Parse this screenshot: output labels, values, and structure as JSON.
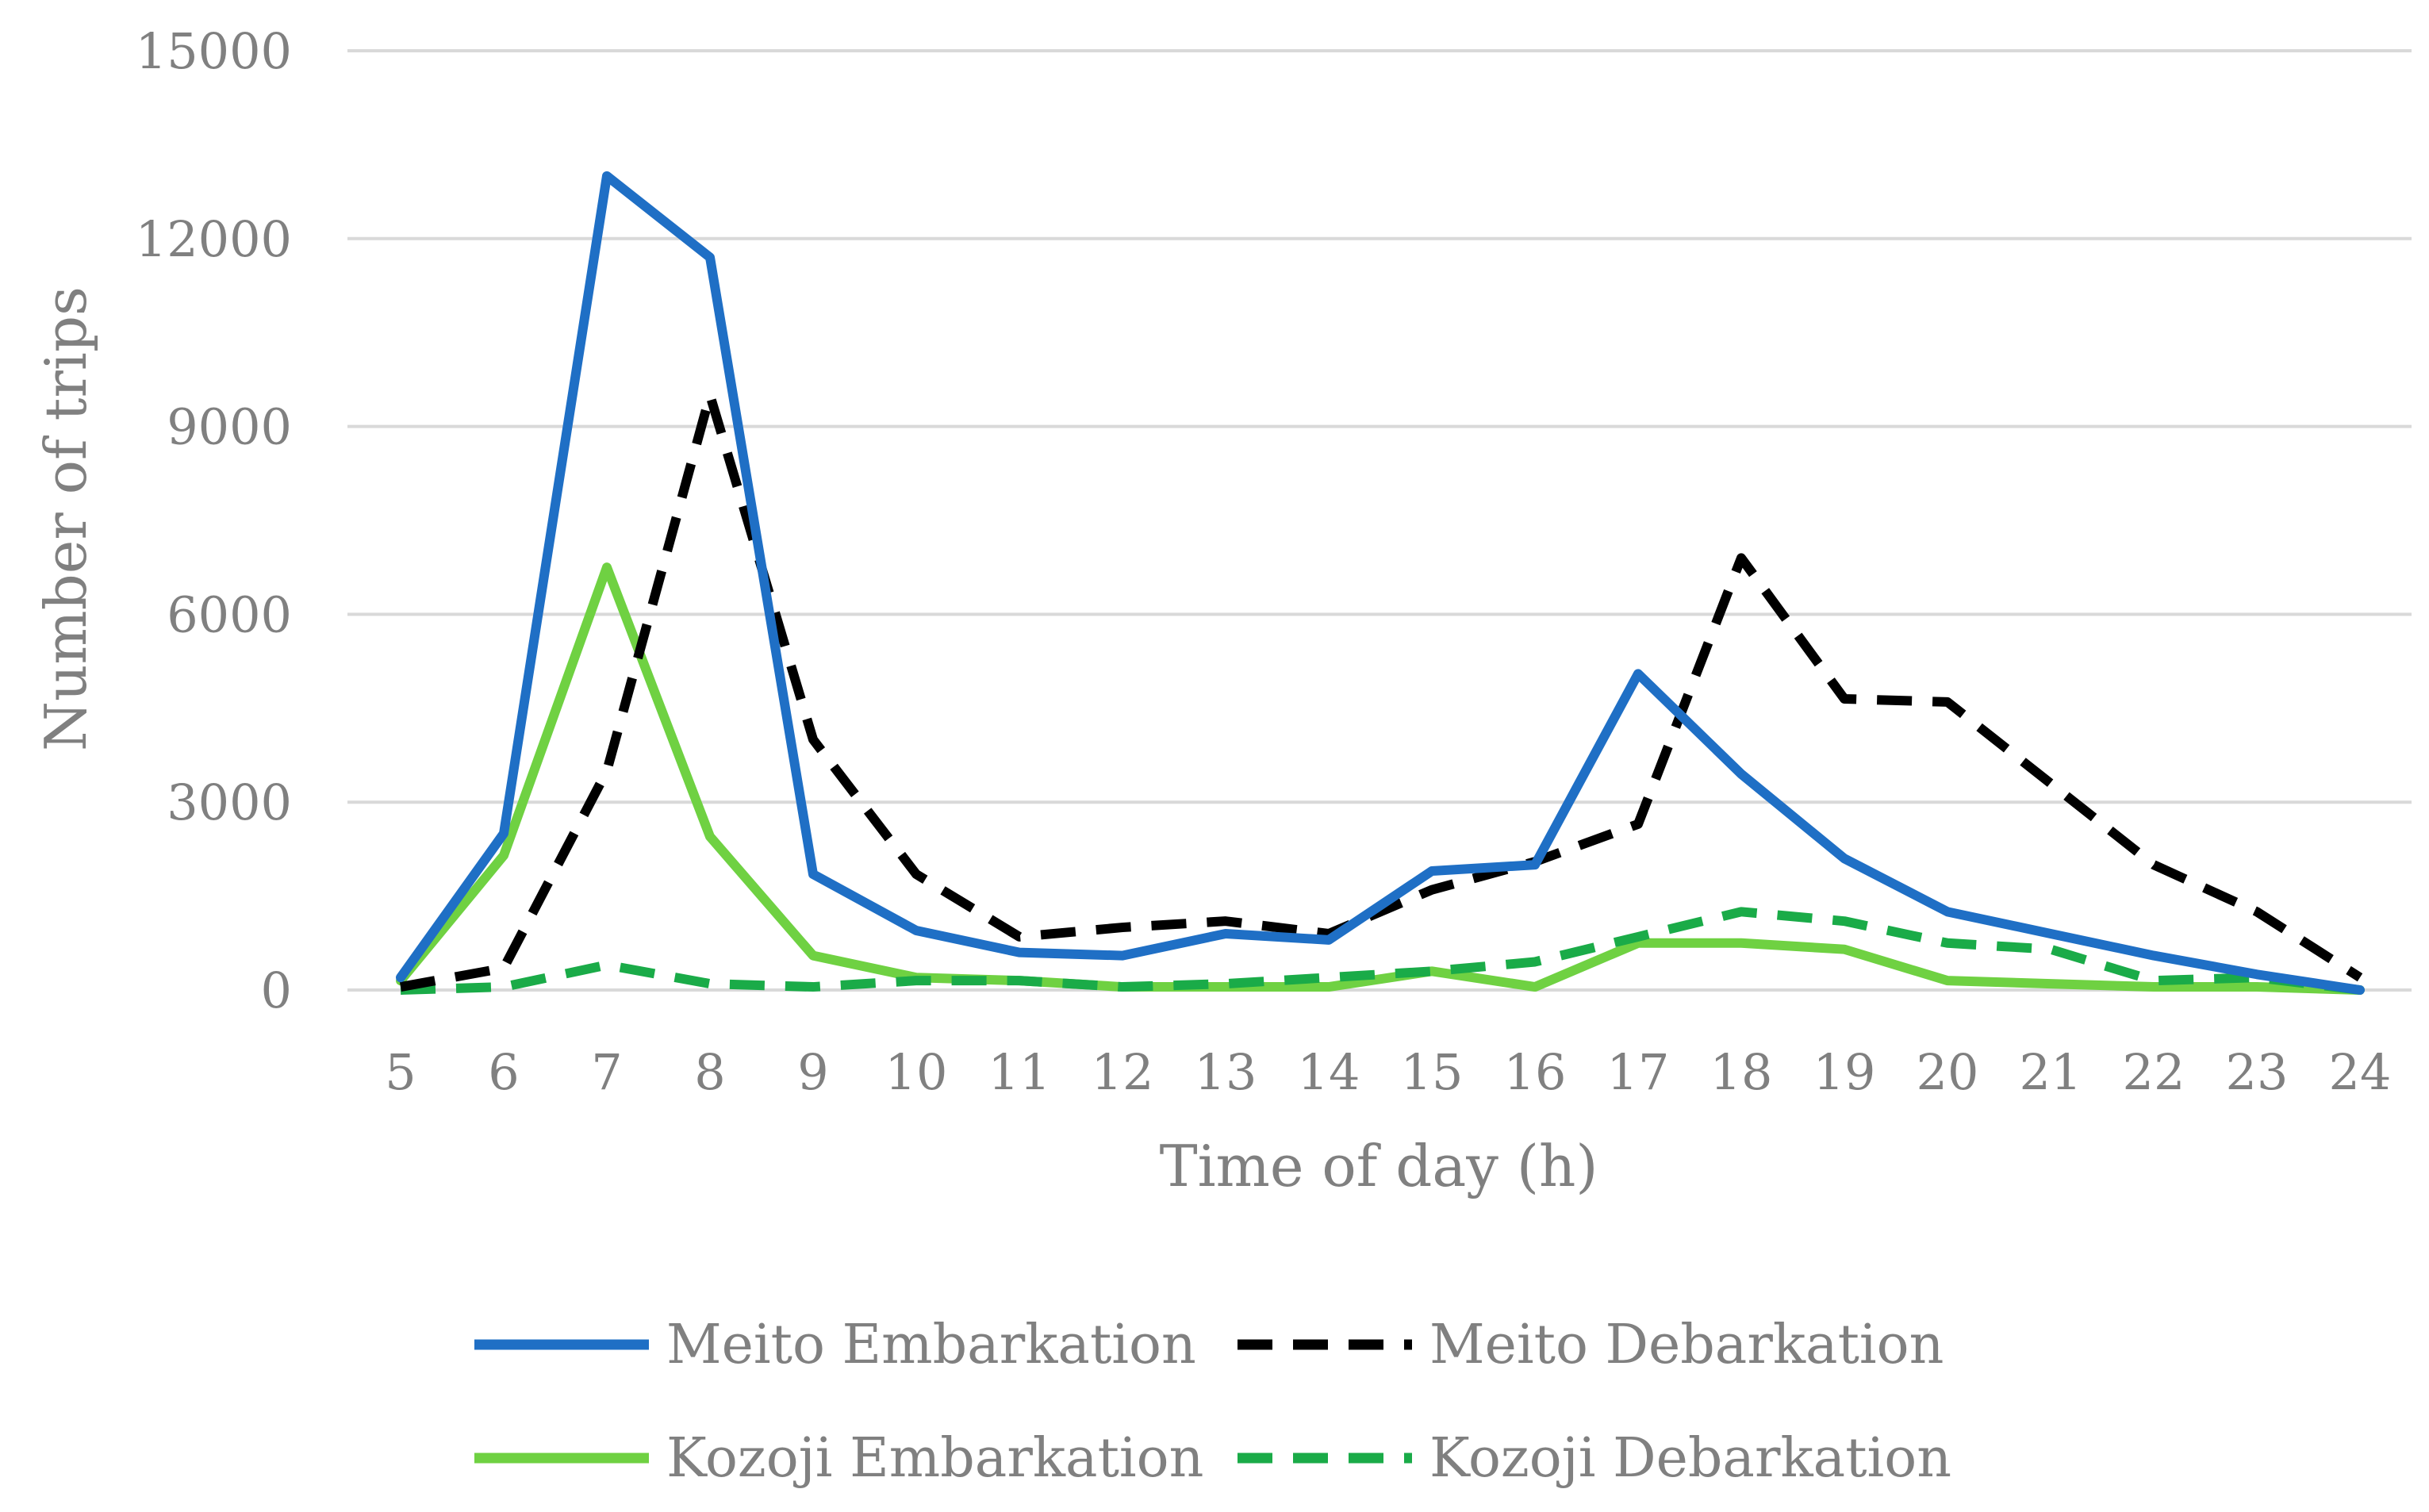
{
  "chart_data": {
    "type": "line",
    "title": "",
    "xlabel": "Time of day (h)",
    "ylabel": "Number of trips",
    "x": [
      "5",
      "6",
      "7",
      "8",
      "9",
      "10",
      "11",
      "12",
      "13",
      "14",
      "15",
      "16",
      "17",
      "18",
      "19",
      "20",
      "21",
      "22",
      "23",
      "24"
    ],
    "ylim": [
      0,
      15000
    ],
    "yticks": [
      "0",
      "3000",
      "6000",
      "9000",
      "12000",
      "15000"
    ],
    "grid": true,
    "legend_position": "bottom",
    "series": [
      {
        "name": "Meito Embarkation",
        "color": "#1f6fc5",
        "dash": "solid",
        "values": [
          200,
          2500,
          13000,
          11700,
          1850,
          950,
          600,
          550,
          900,
          800,
          1900,
          2000,
          5050,
          3450,
          2100,
          1250,
          900,
          550,
          250,
          0
        ]
      },
      {
        "name": "Meito Debarkation",
        "color": "#000000",
        "dash": "dashed",
        "values": [
          50,
          350,
          3500,
          9500,
          4000,
          1850,
          850,
          1000,
          1100,
          900,
          1600,
          2050,
          2650,
          6900,
          4650,
          4600,
          3300,
          2000,
          1250,
          200
        ]
      },
      {
        "name": "Kozoji Embarkation",
        "color": "#6fd142",
        "dash": "solid",
        "values": [
          150,
          2150,
          6750,
          2450,
          550,
          200,
          150,
          50,
          50,
          50,
          300,
          50,
          750,
          750,
          650,
          150,
          100,
          50,
          50,
          0
        ]
      },
      {
        "name": "Kozoji Debarkation",
        "color": "#1aab48",
        "dash": "dashed",
        "values": [
          0,
          50,
          400,
          100,
          50,
          150,
          150,
          50,
          100,
          200,
          300,
          450,
          850,
          1250,
          1100,
          750,
          650,
          150,
          200,
          0
        ]
      }
    ]
  }
}
